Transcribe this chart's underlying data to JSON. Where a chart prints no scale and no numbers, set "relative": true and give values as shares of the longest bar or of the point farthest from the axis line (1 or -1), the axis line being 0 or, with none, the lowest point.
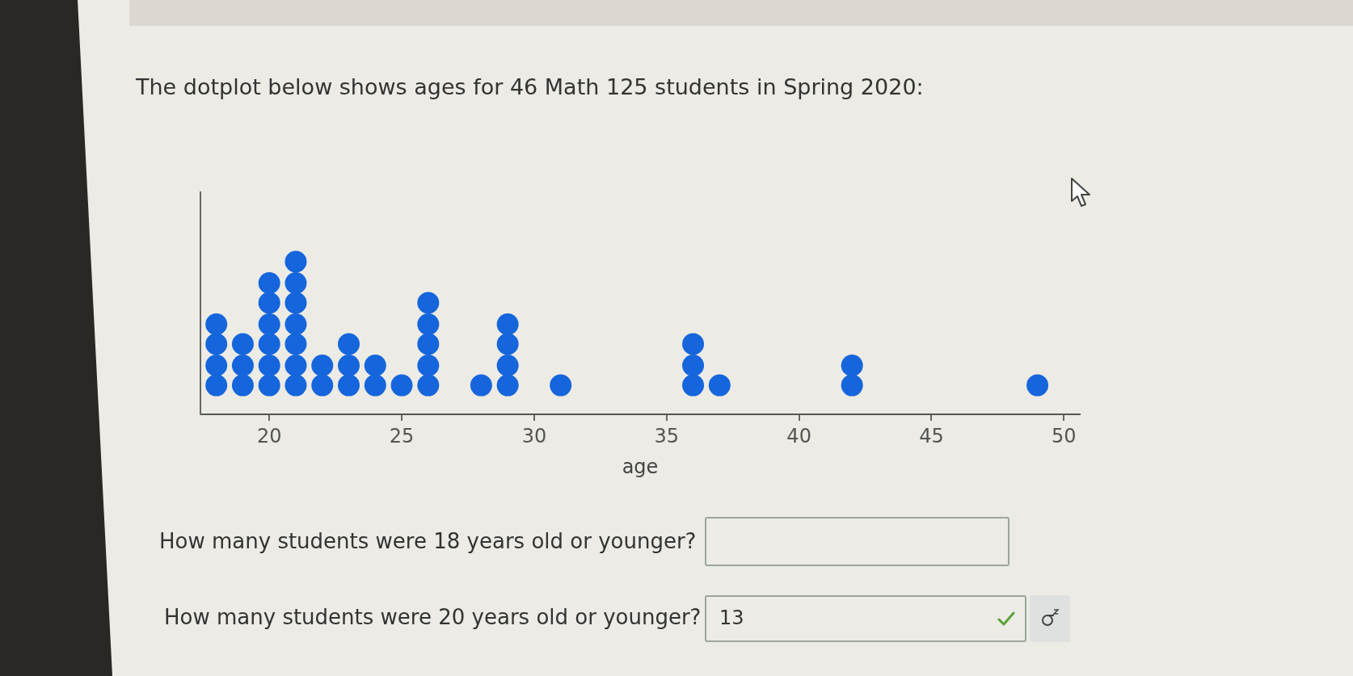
{
  "chart_data": {
    "type": "scatter",
    "title": "The dotplot below shows ages for 46 Math 125 students in Spring 2020:",
    "xlabel": "age",
    "x": [
      18,
      18,
      18,
      18,
      19,
      19,
      19,
      20,
      20,
      20,
      20,
      20,
      20,
      21,
      21,
      21,
      21,
      21,
      21,
      21,
      22,
      22,
      23,
      23,
      23,
      24,
      24,
      25,
      26,
      26,
      26,
      26,
      26,
      28,
      29,
      29,
      29,
      29,
      31,
      36,
      36,
      36,
      37,
      42,
      42,
      49
    ],
    "values": [
      0.19,
      0.32,
      0.46,
      0.59,
      0.19,
      0.32,
      0.46,
      0.19,
      0.32,
      0.46,
      0.59,
      0.73,
      0.86,
      0.19,
      0.32,
      0.46,
      0.59,
      0.73,
      0.86,
      1,
      0.19,
      0.32,
      0.19,
      0.32,
      0.46,
      0.19,
      0.32,
      0.19,
      0.19,
      0.32,
      0.46,
      0.59,
      0.73,
      0.19,
      0.19,
      0.32,
      0.46,
      0.59,
      0.19,
      0.19,
      0.32,
      0.46,
      0.19,
      0.19,
      0.32,
      0.19
    ],
    "relative": true,
    "color": "#1565dc",
    "marker": "circle",
    "xlim": [
      17.4,
      50.6
    ],
    "xticks": [
      20,
      25,
      30,
      35,
      40,
      45,
      50
    ],
    "tick_labels": "x",
    "annotations": [
      "How many students were 18 years old or younger?",
      "How many students were 20 years old or younger?",
      "13"
    ]
  }
}
